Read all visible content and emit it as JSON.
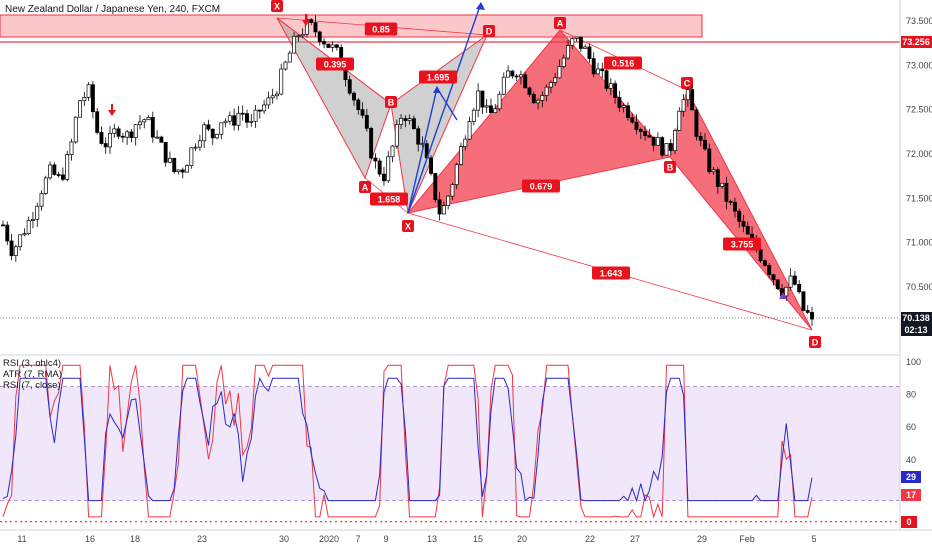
{
  "title": "New Zealand Dollar / Japanese Yen, 240, FXCM",
  "indicators": [
    "RSI (3, ohlc4)",
    "ATR (7, RMA)",
    "RSI (7, close)"
  ],
  "colors": {
    "bull": "#ffffff",
    "bear": "#000000",
    "pattern_red": "#f23645",
    "pattern_red_fill": "rgba(242,54,69,0.72)",
    "pattern_gray_fill": "rgba(150,150,150,0.45)",
    "rsi_red": "#f23645",
    "rsi_blue": "#2929c9",
    "band_fill": "rgba(186,150,230,0.22)",
    "arrow_blue": "#1f3fd6",
    "tag_red": "#e8121f"
  },
  "chart_data": [
    {
      "type": "candlestick",
      "symbol": "NZDJPY",
      "timeframe": "240",
      "y_axis": {
        "ticks": [
          73.5,
          73.0,
          72.5,
          72.0,
          71.5,
          71.0,
          70.5
        ],
        "tick_labels": [
          "73.500",
          "73.000",
          "72.500",
          "72.000",
          "71.500",
          "71.000",
          "70.500"
        ],
        "range": [
          69.9,
          73.65
        ]
      },
      "x_axis": {
        "tick_labels": [
          "11",
          "16",
          "18",
          "23",
          "30",
          "2020",
          "7",
          "9",
          "13",
          "15",
          "20",
          "22",
          "27",
          "29",
          "Feb",
          "5"
        ]
      },
      "price_levels": [
        {
          "value": 73.256,
          "label": "73.256",
          "style": "solid"
        },
        {
          "value": 70.138,
          "label": "70.138",
          "style": "dotted",
          "countdown": "02:13"
        }
      ],
      "resistance_zone": [
        73.27,
        73.55
      ],
      "close_path": [
        71.2,
        70.9,
        71.1,
        71.3,
        71.6,
        71.8,
        71.7,
        72.0,
        72.6,
        72.7,
        72.2,
        72.1,
        72.3,
        72.2,
        72.35,
        72.4,
        72.2,
        72.0,
        71.8,
        71.85,
        72.1,
        72.3,
        72.2,
        72.4,
        72.35,
        72.5,
        72.3,
        72.5,
        72.6,
        72.8,
        73.1,
        73.35,
        73.45,
        73.38,
        73.25,
        73.15,
        72.9,
        72.6,
        72.3,
        71.9,
        71.75,
        72.1,
        72.5,
        72.3,
        72.1,
        71.7,
        71.3,
        71.6,
        72.0,
        72.45,
        72.7,
        72.4,
        72.6,
        72.9,
        72.95,
        72.8,
        72.6,
        72.7,
        72.9,
        73.1,
        73.3,
        73.2,
        73.0,
        72.85,
        72.7,
        72.55,
        72.45,
        72.3,
        72.2,
        72.1,
        72.0,
        72.55,
        72.65,
        72.2,
        71.9,
        71.7,
        71.5,
        71.3,
        71.1,
        70.95,
        70.8,
        70.6,
        70.45,
        70.6,
        70.25,
        70.138
      ],
      "harmonic_patterns": [
        {
          "name": "pattern-1",
          "fill": "gray",
          "points": [
            {
              "label": "X",
              "x": "Dec 30",
              "price": 73.45
            },
            {
              "label": "A",
              "x": "Jan 6",
              "price": 71.75
            },
            {
              "label": "B",
              "x": "Jan 7",
              "price": 72.55
            },
            {
              "label": "X",
              "x": "Jan 8",
              "price": 71.3
            },
            {
              "label": "D",
              "x": "Jan 13",
              "price": 73.28
            }
          ],
          "ratios": [
            "0.85",
            "0.395",
            "1.658",
            "1.695"
          ]
        },
        {
          "name": "pattern-2",
          "fill": "red",
          "points": [
            {
              "label": "X",
              "x": "Jan 8",
              "price": 71.3
            },
            {
              "label": "A",
              "x": "Jan 17",
              "price": 73.35
            },
            {
              "label": "B",
              "x": "Jan 23",
              "price": 72.05
            },
            {
              "label": "C",
              "x": "Jan 24",
              "price": 72.65
            },
            {
              "label": "D",
              "x": "Feb 1",
              "price": 70.138
            }
          ],
          "ratios": [
            "0.516",
            "0.679",
            "3.755",
            "1.643"
          ]
        }
      ]
    },
    {
      "type": "line",
      "name": "oscillators",
      "y_axis": {
        "ticks": [
          100,
          80,
          60,
          40,
          20
        ],
        "range": [
          0,
          100
        ]
      },
      "band": [
        15,
        85
      ],
      "series": [
        {
          "name": "RSI (3, ohlc4)",
          "color": "red",
          "last_value": 17
        },
        {
          "name": "RSI (7, close)",
          "color": "blue",
          "last_value": 29
        },
        {
          "name": "ATR (7, RMA)",
          "color": "red",
          "last_value": 0
        }
      ],
      "last_labels": [
        "29",
        "17",
        "0"
      ]
    }
  ],
  "ratio_tags": [
    "0.85",
    "0.395",
    "1.695",
    "1.658",
    "0.679",
    "0.516",
    "3.755",
    "1.643"
  ],
  "point_tags": [
    "X",
    "A",
    "B",
    "X",
    "D",
    "A",
    "B",
    "C",
    "D"
  ],
  "price_tags": {
    "last": "70.138",
    "countdown": "02:13",
    "level": "73.256"
  },
  "osc_tags": {
    "blue": "29",
    "red": "17",
    "zero": "0"
  }
}
